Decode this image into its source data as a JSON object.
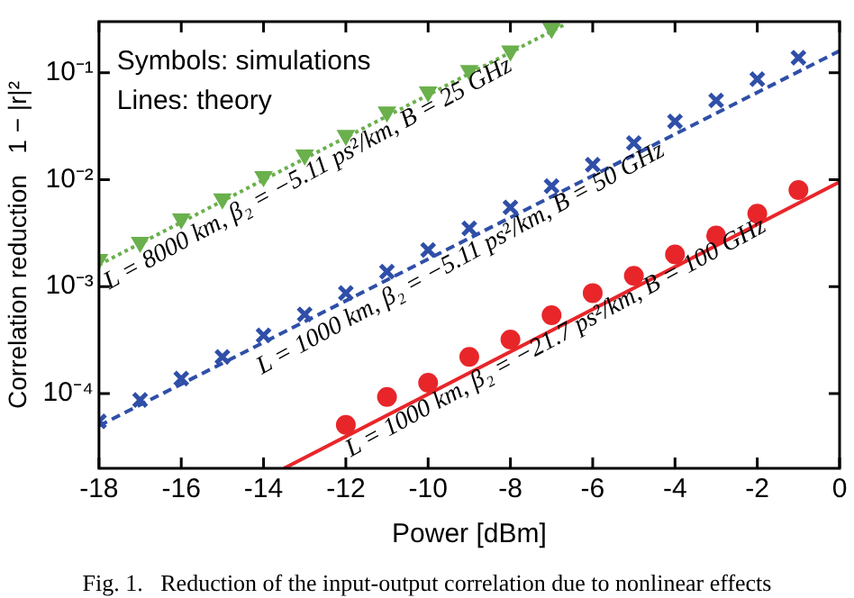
{
  "chart_data": {
    "type": "scatter",
    "xlabel": "Power [dBm]",
    "ylabel": "Correlation reduction   1 − |r|²",
    "log": "y",
    "legend": false,
    "grid": false,
    "xlim": [
      -18,
      0
    ],
    "xticks": [
      -18,
      -16,
      -14,
      -12,
      -10,
      -8,
      -6,
      -4,
      -2,
      0
    ],
    "ylim": [
      2e-05,
      0.3
    ],
    "yticks": [
      {
        "value": 0.0001,
        "label": "10⁻⁴"
      },
      {
        "value": 0.001,
        "label": "10⁻³"
      },
      {
        "value": 0.01,
        "label": "10⁻²"
      },
      {
        "value": 0.1,
        "label": "10⁻¹"
      }
    ],
    "series": [
      {
        "type": "scatter",
        "color": "#6ab04c",
        "marker": "triangle",
        "x": [
          -18,
          -17,
          -16,
          -15,
          -14,
          -13,
          -12,
          -11,
          -10,
          -9,
          -8,
          -7
        ],
        "values": [
          0.0018,
          0.0026,
          0.0043,
          0.0066,
          0.0107,
          0.017,
          0.026,
          0.043,
          0.066,
          0.105,
          0.16,
          0.26
        ]
      },
      {
        "type": "line",
        "color": "#6ab04c",
        "line_style": "dotted",
        "x": [
          -18,
          -6.7
        ],
        "values": [
          0.0016,
          0.28
        ]
      },
      {
        "type": "scatter",
        "color": "#2f4fa8",
        "marker": "cross",
        "x": [
          -18,
          -17,
          -16,
          -15,
          -14,
          -13,
          -12,
          -11,
          -10,
          -9,
          -8,
          -7,
          -6,
          -5,
          -4,
          -3,
          -2,
          -1
        ],
        "values": [
          5.5e-05,
          8.7e-05,
          0.000138,
          0.00022,
          0.00035,
          0.00055,
          0.00087,
          0.00138,
          0.0022,
          0.0035,
          0.0055,
          0.0087,
          0.0138,
          0.022,
          0.035,
          0.055,
          0.087,
          0.138
        ]
      },
      {
        "type": "line",
        "color": "#2f4fa8",
        "line_style": "dashed",
        "x": [
          -18,
          0
        ],
        "values": [
          5e-05,
          0.16
        ]
      },
      {
        "type": "scatter",
        "color": "#e8262a",
        "marker": "circle",
        "x": [
          -12,
          -11,
          -10,
          -9,
          -8,
          -7,
          -6,
          -5,
          -4,
          -3,
          -2,
          -1
        ],
        "values": [
          5.1e-05,
          9.3e-05,
          0.000126,
          0.00022,
          0.00032,
          0.00054,
          0.00087,
          0.00126,
          0.002,
          0.003,
          0.0048,
          0.008
        ]
      },
      {
        "type": "line",
        "color": "#e8262a",
        "line_style": "solid",
        "x": [
          -13.5,
          0
        ],
        "values": [
          2e-05,
          0.0095
        ]
      }
    ],
    "annotations": [
      "Symbols: simulations",
      "Lines: theory",
      "L = 8000 km, β₂ = −5.11 ps²/km, B = 25 GHz",
      "L = 1000 km, β₂ = −5.11 ps²/km, B = 50 GHz",
      "L = 1000 km, β₂ = −21.7 ps²/km, B = 100 GHz",
      "Fig. 1.   Reduction of the input-output correlation due to nonlinear effects"
    ]
  }
}
